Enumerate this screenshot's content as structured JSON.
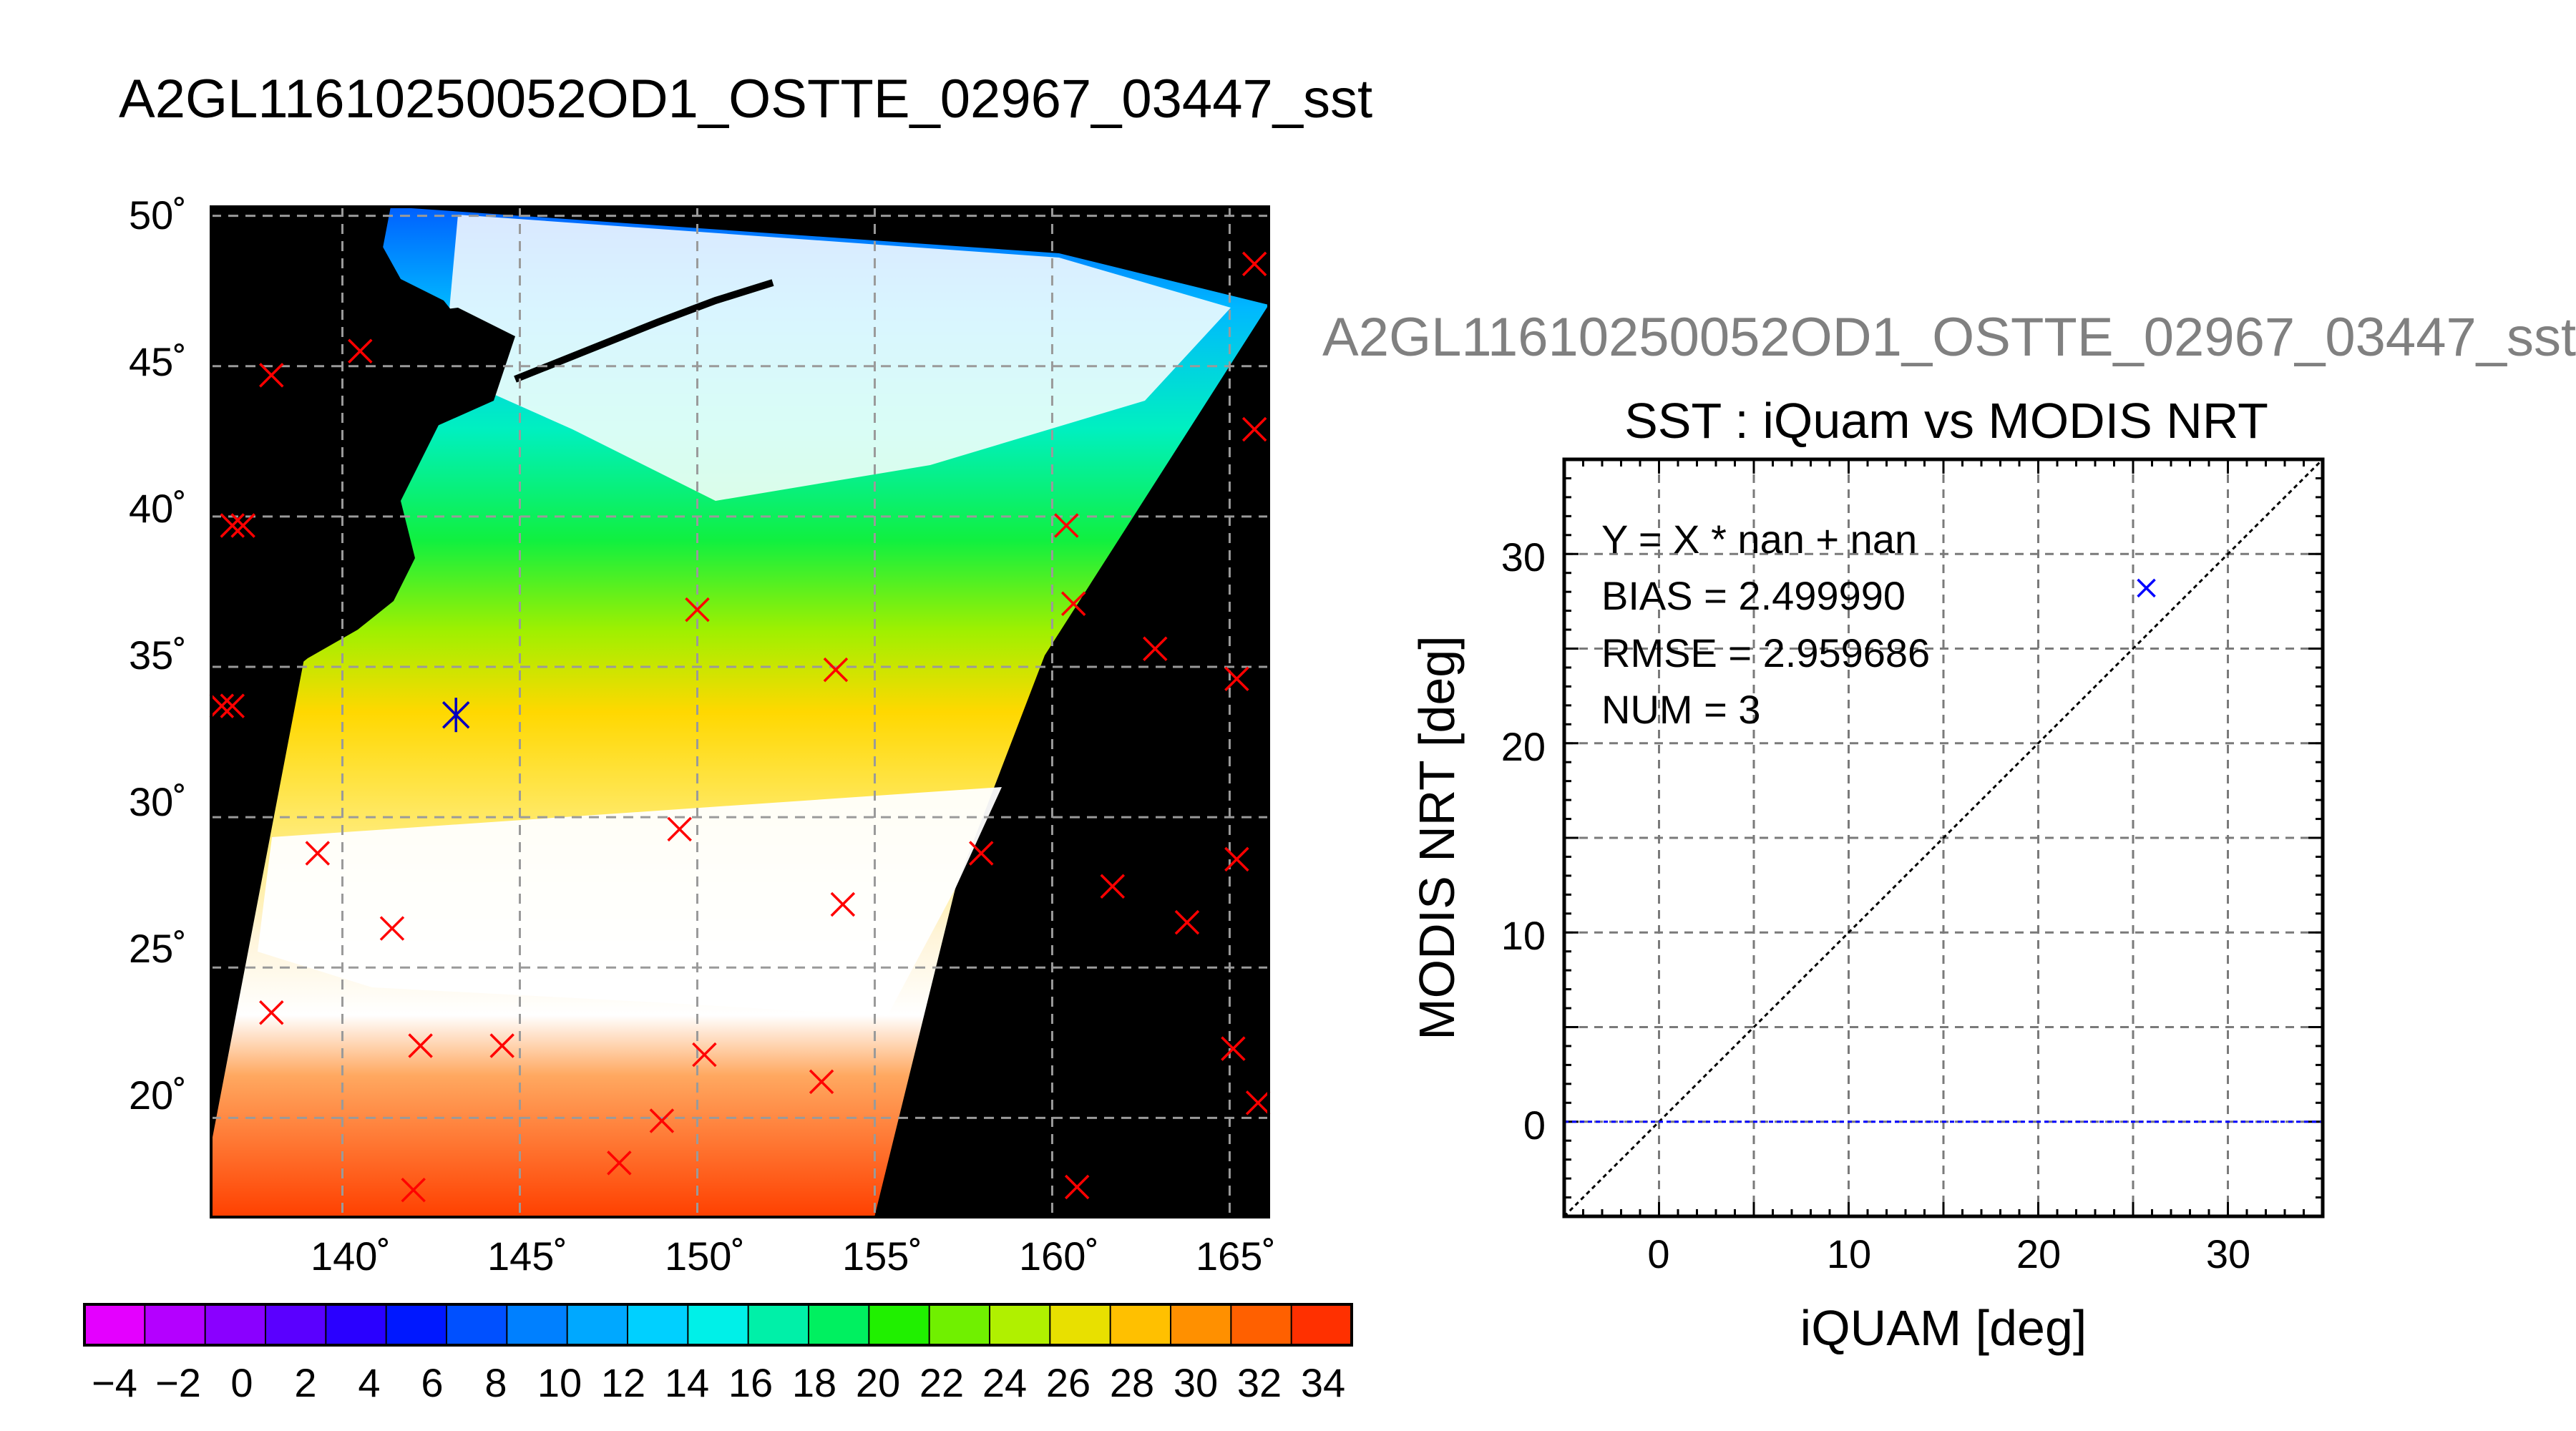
{
  "map_panel": {
    "title": "A2GL11610250052OD1_OSTTE_02967_03447_sst",
    "lat_ticks": [
      "50˚",
      "45˚",
      "40˚",
      "35˚",
      "30˚",
      "25˚",
      "20˚"
    ],
    "lon_ticks": [
      "140˚",
      "145˚",
      "150˚",
      "155˚",
      "160˚",
      "165˚"
    ],
    "colorbar_ticks": [
      "−4",
      "−2",
      "0",
      "2",
      "4",
      "6",
      "8",
      "10",
      "12",
      "14",
      "16",
      "18",
      "20",
      "22",
      "24",
      "26",
      "28",
      "30",
      "32",
      "34"
    ],
    "colorbar_colors": [
      "#e400ff",
      "#b400ff",
      "#8a00ff",
      "#5a00ff",
      "#2a00ff",
      "#0018ff",
      "#0050ff",
      "#0080ff",
      "#00a8ff",
      "#00d0ff",
      "#00f0e8",
      "#00f0a8",
      "#00f060",
      "#20f000",
      "#70f000",
      "#b0f000",
      "#e8e000",
      "#ffc000",
      "#ff9000",
      "#ff6000",
      "#ff3000"
    ],
    "colors": {
      "background_mask": "#000000",
      "marker_iquam": "#ff0000",
      "marker_match": "#0000c0"
    },
    "markers_red_lonlat": [
      [
        138.0,
        44.7
      ],
      [
        140.5,
        45.5
      ],
      [
        136.9,
        39.7
      ],
      [
        137.2,
        39.7
      ],
      [
        136.6,
        33.7
      ],
      [
        136.9,
        33.7
      ],
      [
        139.3,
        28.8
      ],
      [
        141.4,
        26.3
      ],
      [
        138.0,
        23.5
      ],
      [
        142.2,
        22.4
      ],
      [
        144.5,
        22.4
      ],
      [
        142.0,
        17.6
      ],
      [
        150.0,
        36.9
      ],
      [
        153.9,
        34.9
      ],
      [
        149.5,
        29.6
      ],
      [
        154.1,
        27.1
      ],
      [
        150.2,
        22.1
      ],
      [
        153.5,
        21.2
      ],
      [
        149.0,
        19.9
      ],
      [
        147.8,
        18.5
      ],
      [
        160.4,
        39.7
      ],
      [
        160.6,
        37.1
      ],
      [
        162.9,
        35.6
      ],
      [
        158.0,
        28.8
      ],
      [
        161.7,
        27.7
      ],
      [
        163.8,
        26.5
      ],
      [
        160.7,
        17.7
      ],
      [
        165.7,
        48.4
      ],
      [
        165.7,
        42.9
      ],
      [
        165.2,
        34.6
      ],
      [
        165.2,
        28.6
      ],
      [
        165.1,
        22.3
      ],
      [
        165.8,
        20.5
      ],
      [
        143.2,
        33.4
      ]
    ],
    "markers_blue_lonlat": [
      [
        143.2,
        33.4
      ]
    ]
  },
  "scatter_panel": {
    "gray_title": "A2GL11610250052OD1_OSTTE_02967_03447_sst",
    "stats": {
      "line1": "Y = X * nan + nan",
      "line2": "BIAS = 2.499990",
      "line3": "RMSE = 2.959686",
      "line4": "NUM = 3"
    },
    "colors": {
      "point": "#0000ff",
      "zero_line": "#0000ff",
      "identity_line": "#000000"
    }
  },
  "chart_data": [
    {
      "type": "scatter",
      "title": "SST : iQuam vs MODIS NRT",
      "xlabel": "iQUAM [deg]",
      "ylabel": "MODIS NRT [deg]",
      "xlim": [
        -5,
        35
      ],
      "ylim": [
        -5,
        35
      ],
      "x_ticks": [
        "0",
        "10",
        "20",
        "30"
      ],
      "y_ticks": [
        "0",
        "10",
        "20",
        "30"
      ],
      "grid": true,
      "series": [
        {
          "x": [
            25.7
          ],
          "y": [
            28.2
          ]
        }
      ],
      "reference_lines": [
        "y = x",
        "y = 0"
      ]
    }
  ]
}
